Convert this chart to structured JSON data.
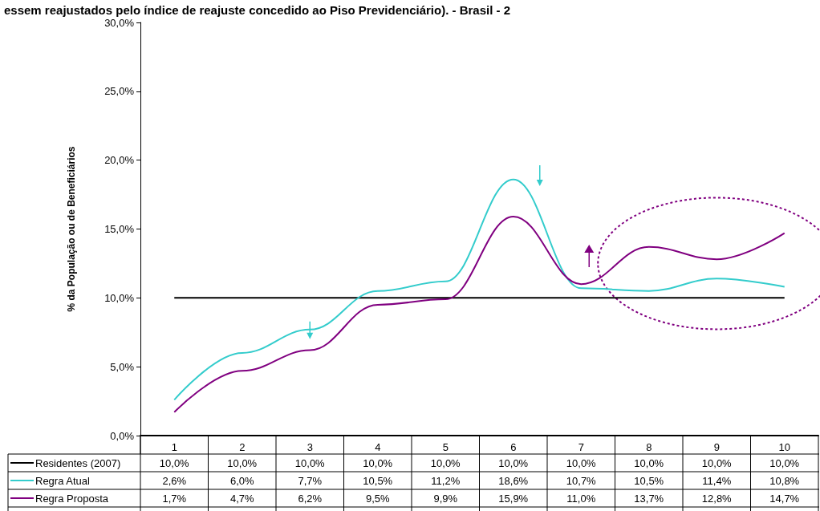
{
  "chart_data": {
    "type": "line",
    "title": "essem reajustados pelo índice de reajuste concedido ao Piso Previdenciário). - Brasil - 2",
    "ylabel": "% da População ou de Beneficiários",
    "categories": [
      "1",
      "2",
      "3",
      "4",
      "5",
      "6",
      "7",
      "8",
      "9",
      "10"
    ],
    "series": [
      {
        "name": "Residentes (2007)",
        "color": "#000000",
        "values": [
          10,
          10,
          10,
          10,
          10,
          10,
          10,
          10,
          10,
          10
        ],
        "value_labels": [
          "10,0%",
          "10,0%",
          "10,0%",
          "10,0%",
          "10,0%",
          "10,0%",
          "10,0%",
          "10,0%",
          "10,0%",
          "10,0%"
        ]
      },
      {
        "name": "Regra Atual",
        "color": "#33cccc",
        "values": [
          2.6,
          6.0,
          7.7,
          10.5,
          11.2,
          18.6,
          10.7,
          10.5,
          11.4,
          10.8
        ],
        "value_labels": [
          "2,6%",
          "6,0%",
          "7,7%",
          "10,5%",
          "11,2%",
          "18,6%",
          "10,7%",
          "10,5%",
          "11,4%",
          "10,8%"
        ]
      },
      {
        "name": "Regra Proposta",
        "color": "#800080",
        "values": [
          1.7,
          4.7,
          6.2,
          9.5,
          9.9,
          15.9,
          11.0,
          13.7,
          12.8,
          14.7
        ],
        "value_labels": [
          "1,7%",
          "4,7%",
          "6,2%",
          "9,5%",
          "9,9%",
          "15,9%",
          "11,0%",
          "13,7%",
          "12,8%",
          "14,7%"
        ]
      }
    ],
    "ylim": [
      0,
      30
    ],
    "yticks": [
      {
        "value": 0,
        "label": "0,0%"
      },
      {
        "value": 5,
        "label": "5,0%"
      },
      {
        "value": 10,
        "label": "10,0%"
      },
      {
        "value": 15,
        "label": "15,0%"
      },
      {
        "value": 20,
        "label": "20,0%"
      },
      {
        "value": 25,
        "label": "25,0%"
      },
      {
        "value": 30,
        "label": "30,0%"
      }
    ],
    "grid": false,
    "legend": "bottom",
    "marker": "none",
    "line_style": "solid"
  }
}
